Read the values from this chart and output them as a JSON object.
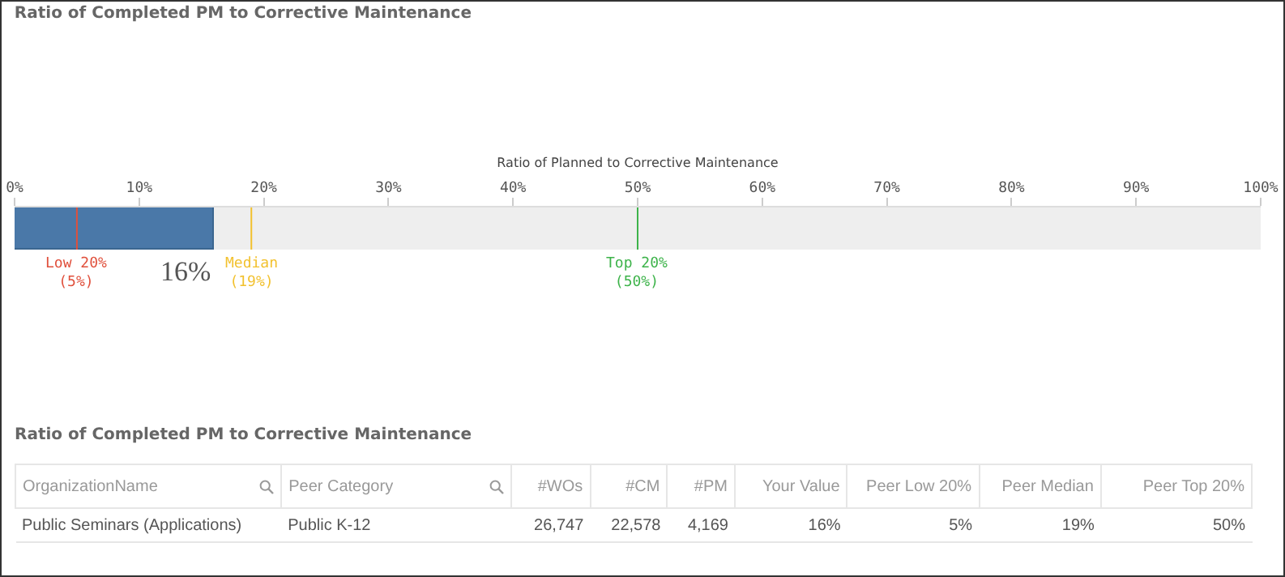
{
  "chart_data": [
    {
      "type": "bar",
      "title": "Ratio of Completed PM to Corrective Maintenance",
      "xlabel": "Ratio of Planned to Corrective Maintenance",
      "orientation": "horizontal",
      "categories": [
        null
      ],
      "values": [
        16
      ],
      "value_labels": [
        "16%"
      ],
      "color": "#4a78a8",
      "xlim": [
        0,
        100
      ],
      "xticks": [
        {
          "value": 0,
          "label": "0%"
        },
        {
          "value": 10,
          "label": "10%"
        },
        {
          "value": 20,
          "label": "20%"
        },
        {
          "value": 30,
          "label": "30%"
        },
        {
          "value": 40,
          "label": "40%"
        },
        {
          "value": 50,
          "label": "50%"
        },
        {
          "value": 60,
          "label": "60%"
        },
        {
          "value": 70,
          "label": "70%"
        },
        {
          "value": 80,
          "label": "80%"
        },
        {
          "value": 90,
          "label": "90%"
        },
        {
          "value": 100,
          "label": "100%"
        }
      ],
      "bands": [
        {
          "axis": "x",
          "from": 0,
          "to": 100,
          "color": "#eeeeee"
        }
      ],
      "ref_lines": [
        {
          "axis": "x",
          "value": 5,
          "label": "Low 20%\n(5%)",
          "color": "#e0503c"
        },
        {
          "axis": "x",
          "value": 19,
          "label": "Median\n(19%)",
          "color": "#f2c12e"
        },
        {
          "axis": "x",
          "value": 50,
          "label": "Top 20%\n(50%)",
          "color": "#3db34a"
        }
      ],
      "tick_labels": "x"
    },
    {
      "type": "other",
      "title": "Ratio of Completed PM to Corrective Maintenance",
      "categories": [
        "OrganizationName",
        "Peer Category",
        "#WOs",
        "#CM",
        "#PM",
        "Your Value",
        "Peer Low 20%",
        "Peer Median",
        "Peer Top 20%"
      ],
      "annotations": [
        "Public Seminars (Applications)",
        "Public K-12",
        "26,747",
        "22,578",
        "4,169",
        "16%",
        "5%",
        "19%",
        "50%"
      ]
    }
  ]
}
